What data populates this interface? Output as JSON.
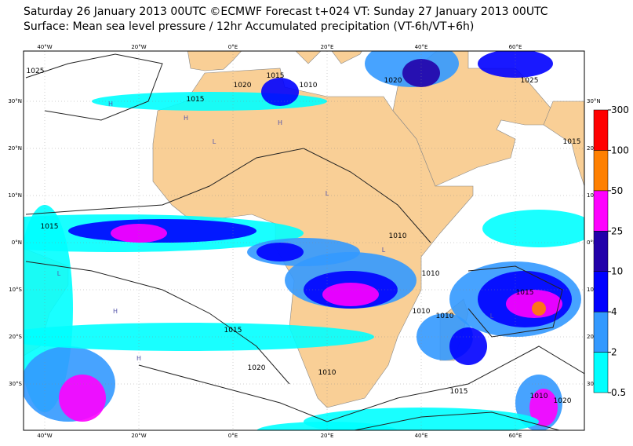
{
  "header": {
    "title": "Saturday 26 January 2013 00UTC ©ECMWF Forecast t+024 VT: Sunday 27 January 2013 00UTC",
    "subtitle": "Surface: Mean sea level pressure / 12hr Accumulated precipitation (VT-6h/VT+6h)"
  },
  "map": {
    "lon_labels": [
      "40°W",
      "20°W",
      "0°E",
      "20°E",
      "40°E",
      "60°E"
    ],
    "lat_labels": [
      "30°N",
      "20°N",
      "10°N",
      "0°N",
      "10°S",
      "20°S",
      "30°S"
    ],
    "isobar_labels": [
      "1025",
      "1015",
      "1020",
      "1015",
      "1010",
      "1020",
      "1025",
      "1015",
      "1015",
      "1010",
      "1010",
      "1010",
      "1010",
      "1015",
      "1020",
      "1010",
      "1015",
      "1010",
      "1015",
      "1020"
    ],
    "pressure_centers": [
      "H",
      "H",
      "H",
      "L",
      "L",
      "H",
      "L",
      "L",
      "H",
      "L"
    ]
  },
  "colorbar": {
    "levels": [
      0.5,
      2,
      4,
      10,
      25,
      50,
      100,
      300
    ],
    "colors": [
      "#00ffff",
      "#3399ff",
      "#0000ff",
      "#2200aa",
      "#ff00ff",
      "#ff8000",
      "#ff0000"
    ]
  }
}
